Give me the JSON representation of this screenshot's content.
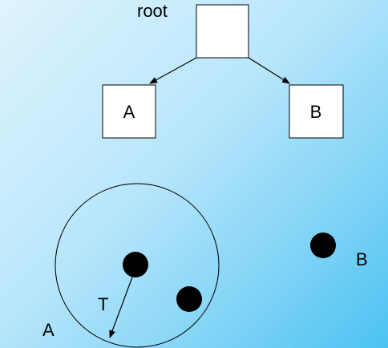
{
  "tree": {
    "root_label": "root",
    "left_child_label": "A",
    "right_child_label": "B"
  },
  "space": {
    "region_label": "A",
    "radius_label": "T",
    "outside_point_label": "B"
  },
  "colors": {
    "node_fill": "#ffffff",
    "stroke": "#000000",
    "point": "#000000"
  }
}
